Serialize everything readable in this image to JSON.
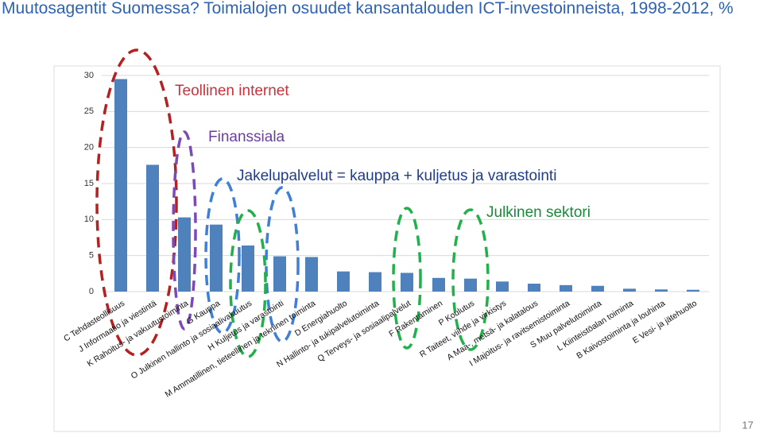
{
  "chart_data": {
    "type": "bar",
    "title": "Muutosagentit Suomessa? Toimialojen osuudet kansantalouden ICT-investoinneista, 1998-2012, %",
    "categories": [
      "C Tehdasteollisuus",
      "J Informaatio ja viestintä",
      "K Rahoitus- ja vakuutustoiminta",
      "G Kauppa",
      "O Julkinen hallinto ja sosiaalivakuutus",
      "H Kuljetus ja varastointi",
      "M Ammatillinen, tieteellinen ja tekninen toiminta",
      "D Energiahuolto",
      "N Hallinto- ja tukipalvelutoiminta",
      "Q Terveys- ja sosiaalipalvelut",
      "F Rakentaminen",
      "P Koulutus",
      "R Taiteet, viihde ja virkistys",
      "A Maa-, metsä- ja kalatalous",
      "I Majoitus- ja ravitsemistoiminta",
      "S Muu palvelutoiminta",
      "L Kiinteistöalan toiminta",
      "B Kaivostoiminta ja louhinta",
      "E Vesi- ja jätehuolto"
    ],
    "values": [
      29.5,
      17.6,
      10.3,
      9.3,
      6.4,
      4.9,
      4.8,
      2.8,
      2.7,
      2.6,
      1.9,
      1.8,
      1.4,
      1.1,
      0.9,
      0.8,
      0.4,
      0.3,
      0.25
    ],
    "color": "#4f81bd",
    "ylim": [
      0,
      30
    ],
    "yticks": [
      0,
      5,
      10,
      15,
      20,
      25,
      30
    ],
    "grid": true,
    "annotations": [
      {
        "text": "Teollinen internet",
        "color": "#c8323c"
      },
      {
        "text": "Finanssiala",
        "color": "#6a3fa0"
      },
      {
        "text": "Jakelupalvelut = kauppa + kuljetus ja varastointi",
        "color": "#1f3d8c"
      },
      {
        "text": "Julkinen sektori",
        "color": "#1a8a3a"
      }
    ]
  },
  "slide": {
    "page_number": "17"
  }
}
